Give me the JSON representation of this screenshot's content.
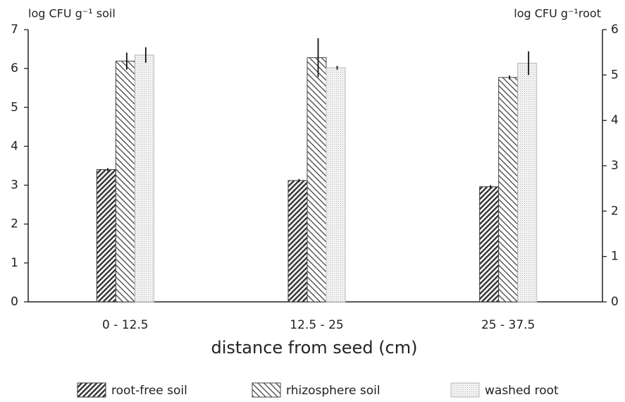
{
  "chart_data": {
    "type": "bar",
    "ylabel": "log CFU g⁻¹ soil",
    "y2label": "log CFU g⁻¹root",
    "xlabel": "distance from seed (cm)",
    "categories": [
      "0 - 12.5",
      "12.5 - 25",
      "25 - 37.5"
    ],
    "series": [
      {
        "name": "root-free soil",
        "color": "#333333",
        "hatch": "forward",
        "values": [
          3.4,
          3.12,
          2.96
        ],
        "errors": [
          0.04,
          0.04,
          0.04
        ]
      },
      {
        "name": "rhizosphere soil",
        "color": "#444444",
        "hatch": "backward",
        "values": [
          6.19,
          6.28,
          5.77
        ],
        "errors": [
          0.22,
          0.5,
          0.05
        ]
      },
      {
        "name": "washed root",
        "color": "#bbbbbb",
        "hatch": "dots",
        "axis": "y2",
        "values": [
          5.44,
          5.16,
          5.26
        ],
        "errors": [
          0.17,
          0.04,
          0.26
        ]
      }
    ],
    "ylim": [
      0,
      7
    ],
    "yticks": [
      0,
      1,
      2,
      3,
      4,
      5,
      6,
      7
    ],
    "y2lim": [
      0,
      6
    ],
    "y2ticks": [
      0,
      1,
      2,
      3,
      4,
      5,
      6
    ],
    "grid": false
  }
}
